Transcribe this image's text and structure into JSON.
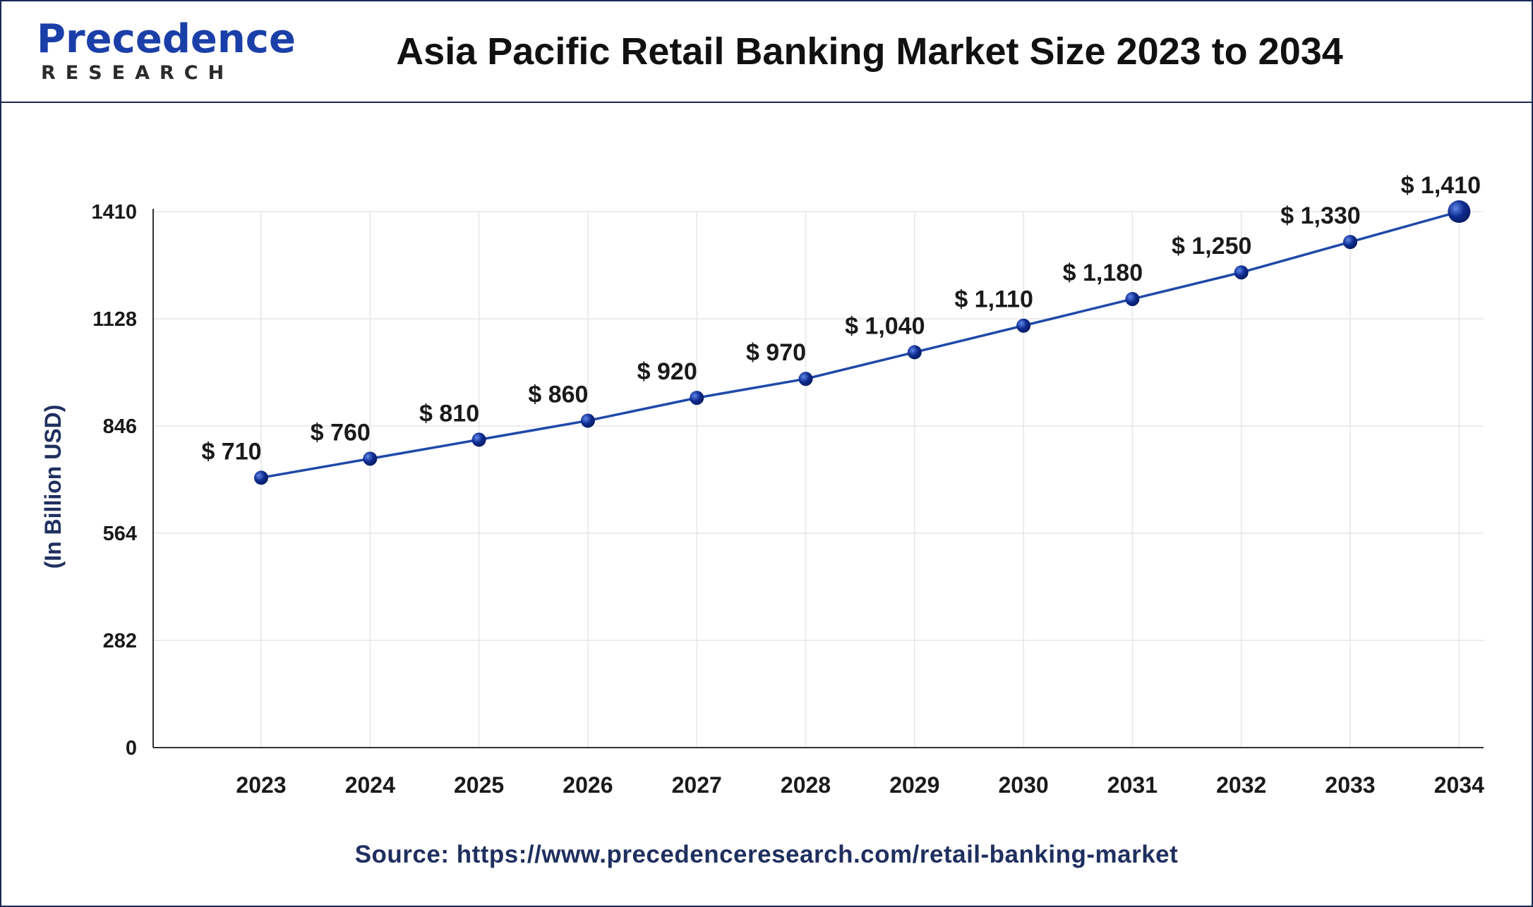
{
  "header": {
    "logo_word": "Precedence",
    "logo_sub": "RESEARCH",
    "title": "Asia Pacific Retail Banking Market Size 2023 to 2034"
  },
  "source": "Source: https://www.precedenceresearch.com/retail-banking-market",
  "colors": {
    "line": "#1f49a8",
    "marker": "#0d2b8f",
    "frame": "#1a2a57",
    "grid": "#e6e6e6",
    "axis_text": "#1a1a1a",
    "ylabel": "#1f2f5f"
  },
  "chart_data": {
    "type": "line",
    "title": "Asia Pacific Retail Banking Market Size 2023 to 2034",
    "xlabel": "",
    "ylabel": "(In Billion USD)",
    "x": [
      "2023",
      "2024",
      "2025",
      "2026",
      "2027",
      "2028",
      "2029",
      "2030",
      "2031",
      "2032",
      "2033",
      "2034"
    ],
    "values": [
      710,
      760,
      810,
      860,
      920,
      970,
      1040,
      1110,
      1180,
      1250,
      1330,
      1410
    ],
    "data_labels": [
      "$ 710",
      "$ 760",
      "$ 810",
      "$ 860",
      "$ 920",
      "$ 970",
      "$ 1,040",
      "$ 1,110",
      "$ 1,180",
      "$ 1,250",
      "$ 1,330",
      "$ 1,410"
    ],
    "yticks": [
      0,
      282,
      564,
      846,
      1128,
      1410
    ],
    "ylim": [
      0,
      1410
    ],
    "grid": true,
    "legend": "none"
  }
}
